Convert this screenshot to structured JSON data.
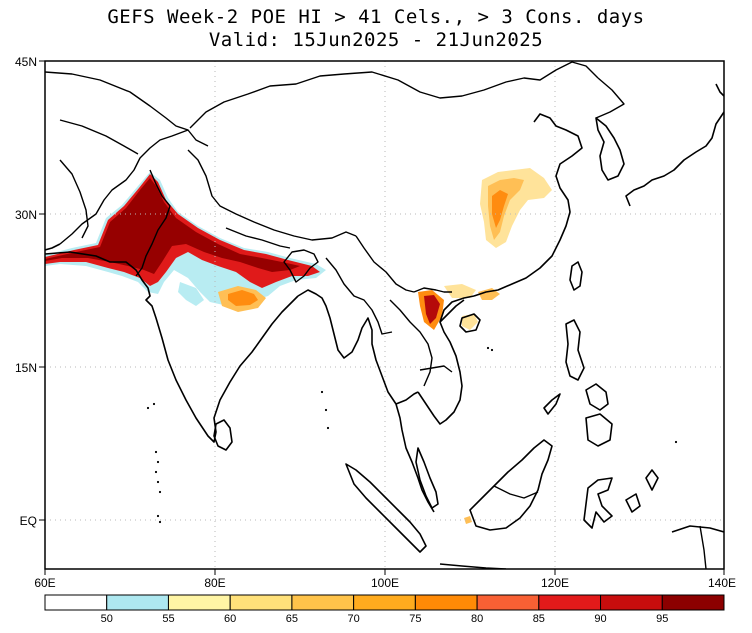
{
  "title": {
    "line1": "GEFS Week-2 POE HI > 41 Cels., > 3 Cons. days",
    "line2": "Valid: 15Jun2025 - 21Jun2025"
  },
  "axes": {
    "x_ticks": [
      "60E",
      "80E",
      "100E",
      "120E",
      "140E"
    ],
    "y_ticks": [
      "45N",
      "30N",
      "15N",
      "EQ"
    ]
  },
  "colorbar": {
    "colors": [
      "#ffffff",
      "#aee8f0",
      "#fff5a5",
      "#ffe17a",
      "#ffc34a",
      "#ffab1e",
      "#ff8a06",
      "#f86034",
      "#e21a1a",
      "#c80d0d",
      "#8c0000"
    ],
    "labels": [
      "50",
      "55",
      "60",
      "65",
      "70",
      "75",
      "80",
      "85",
      "90",
      "95"
    ]
  },
  "map": {
    "colors": {
      "high": "#960000",
      "veryhigh": "#b50a0a",
      "red": "#e01a1a",
      "orange": "#ff8c10",
      "lightorange": "#ffbf55",
      "yellow": "#ffe39a",
      "cyan": "#b8ecf2"
    }
  }
}
